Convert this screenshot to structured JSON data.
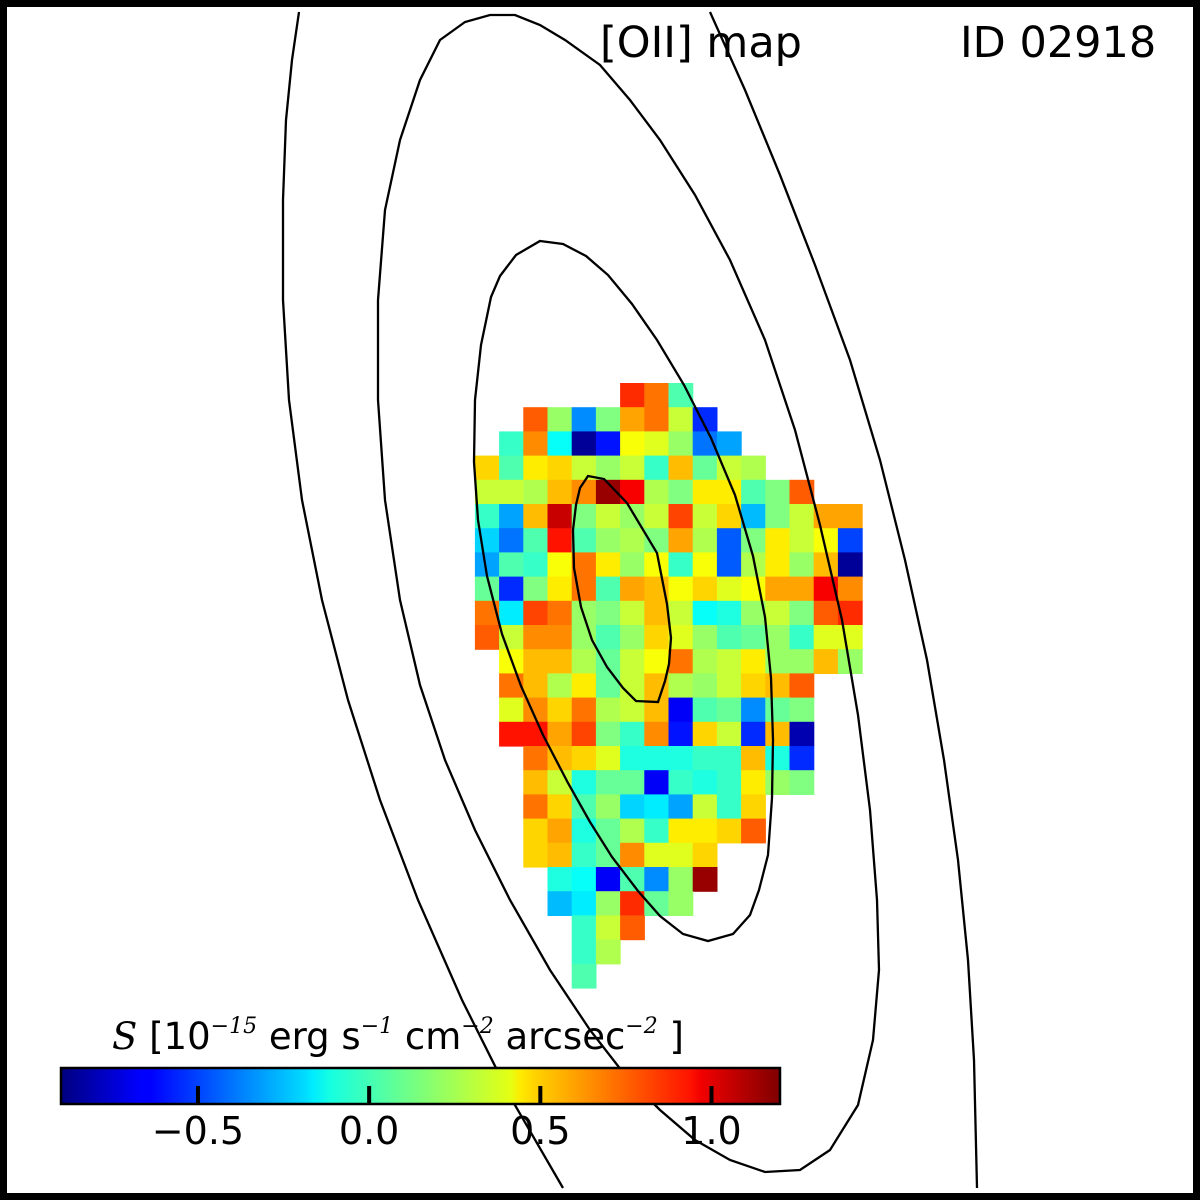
{
  "header": {
    "map_title": "[OII] map",
    "id_title": "ID 02918"
  },
  "colorbar": {
    "label_symbol": "S",
    "label_open": " [10",
    "label_exp1": "−15",
    "label_mid1": " erg s",
    "label_exp2": "−1",
    "label_mid2": " cm",
    "label_exp3": "−2",
    "label_mid3": " arcsec",
    "label_exp4": "−2",
    "label_close": " ]",
    "min": -0.9,
    "max": 1.2,
    "ticks": [
      {
        "value": -0.5,
        "label": "−0.5"
      },
      {
        "value": 0.0,
        "label": "0.0"
      },
      {
        "value": 0.5,
        "label": "0.5"
      },
      {
        "value": 1.0,
        "label": "1.0"
      }
    ],
    "colormap": "jet"
  },
  "chart_data": {
    "type": "heatmap",
    "title": "[OII] map",
    "id": "ID 02918",
    "colorbar_label": "S [10^-15 erg s^-1 cm^-2 arcsec^-2]",
    "vmin": -0.9,
    "vmax": 1.2,
    "row_start": 0,
    "cells": [
      {
        "r": 0,
        "cs": 25,
        "v": [
          0.85,
          0.7,
          0.05
        ]
      },
      {
        "r": 1,
        "cs": 21,
        "v": [
          0.75,
          0.2,
          -0.35,
          0.15,
          0.6,
          0.7,
          0.3,
          -0.55
        ]
      },
      {
        "r": 2,
        "cs": 20,
        "v": [
          0.0,
          0.65,
          -0.1,
          -0.85,
          -0.6,
          0.4,
          0.35,
          0.2,
          -0.4,
          -0.3
        ]
      },
      {
        "r": 3,
        "cs": 19,
        "v": [
          0.5,
          0.05,
          0.45,
          0.5,
          0.3,
          0.2,
          0.3,
          0.0,
          0.55,
          0.1,
          0.3,
          0.25
        ]
      },
      {
        "r": 4,
        "cs": 19,
        "v": [
          0.3,
          0.3,
          0.25,
          0.55,
          0.65,
          1.15,
          0.95,
          0.25,
          0.15,
          0.45,
          0.45,
          0.05,
          0.15,
          0.75
        ]
      },
      {
        "r": 5,
        "cs": 19,
        "v": [
          0.0,
          -0.3,
          0.55,
          1.05,
          0.15,
          0.3,
          0.2,
          0.3,
          0.8,
          0.3,
          0.5,
          -0.25,
          0.15,
          0.3,
          0.6,
          0.6
        ]
      },
      {
        "r": 6,
        "cs": 19,
        "v": [
          -0.2,
          -0.4,
          0.05,
          0.9,
          0.05,
          0.2,
          0.25,
          0.15,
          0.6,
          0.25,
          -0.45,
          0.15,
          0.45,
          0.3,
          0.4,
          -0.5
        ]
      },
      {
        "r": 7,
        "cs": 19,
        "v": [
          -0.3,
          0.05,
          0.0,
          0.4,
          0.7,
          0.45,
          0.2,
          0.4,
          0.0,
          0.4,
          -0.45,
          0.25,
          0.45,
          0.2,
          0.55,
          -0.85
        ]
      },
      {
        "r": 8,
        "cs": 19,
        "v": [
          0.1,
          -0.55,
          0.15,
          0.45,
          0.7,
          0.05,
          0.6,
          0.55,
          0.4,
          0.5,
          0.35,
          0.4,
          0.6,
          0.6,
          0.95,
          0.65
        ]
      },
      {
        "r": 9,
        "cs": 19,
        "v": [
          0.7,
          -0.15,
          0.8,
          0.7,
          0.2,
          0.15,
          0.3,
          0.55,
          0.3,
          -0.1,
          -0.05,
          0.2,
          0.3,
          0.15,
          0.75,
          0.85
        ]
      },
      {
        "r": 10,
        "cs": 19,
        "v": [
          0.75,
          0.3,
          0.65,
          0.65,
          0.2,
          0.05,
          0.2,
          0.5,
          0.35,
          0.2,
          0.05,
          0.1,
          0.2,
          0.0,
          0.35,
          0.35
        ]
      },
      {
        "r": 11,
        "cs": 20,
        "v": [
          0.4,
          0.55,
          0.55,
          0.25,
          0.1,
          0.3,
          0.4,
          0.7,
          0.25,
          0.3,
          0.45,
          0.2,
          0.2,
          0.55,
          0.2
        ]
      },
      {
        "r": 12,
        "cs": 20,
        "v": [
          0.7,
          0.55,
          0.25,
          0.45,
          0.1,
          0.3,
          0.55,
          0.25,
          0.2,
          0.3,
          0.5,
          0.55,
          0.75
        ]
      },
      {
        "r": 13,
        "cs": 20,
        "v": [
          0.35,
          0.65,
          0.5,
          0.7,
          0.25,
          0.3,
          0.55,
          -0.65,
          0.05,
          0.1,
          -0.35,
          0.1,
          0.15
        ]
      },
      {
        "r": 14,
        "cs": 20,
        "v": [
          0.9,
          0.9,
          0.6,
          0.8,
          0.15,
          0.0,
          0.65,
          -0.6,
          0.5,
          0.3,
          -0.55,
          0.55,
          -0.8
        ]
      },
      {
        "r": 15,
        "cs": 21,
        "v": [
          0.7,
          0.55,
          0.5,
          0.35,
          -0.05,
          -0.05,
          -0.05,
          0.0,
          0.0,
          0.55,
          -0.05,
          -0.55
        ]
      },
      {
        "r": 16,
        "cs": 21,
        "v": [
          0.55,
          0.3,
          -0.05,
          0.1,
          0.1,
          -0.65,
          0.0,
          -0.05,
          0.0,
          0.45,
          0.2,
          0.15
        ]
      },
      {
        "r": 17,
        "cs": 21,
        "v": [
          0.7,
          0.5,
          0.05,
          0.2,
          -0.2,
          -0.15,
          -0.3,
          0.3,
          0.0,
          0.5
        ]
      },
      {
        "r": 18,
        "cs": 21,
        "v": [
          0.5,
          0.6,
          -0.05,
          0.1,
          0.25,
          0.0,
          0.45,
          0.45,
          0.5,
          0.75
        ]
      },
      {
        "r": 19,
        "cs": 21,
        "v": [
          0.5,
          0.55,
          0.0,
          0.1,
          0.65,
          0.35,
          0.35,
          0.5
        ]
      },
      {
        "r": 20,
        "cs": 22,
        "v": [
          -0.05,
          -0.1,
          -0.65,
          0.05,
          -0.35,
          0.2,
          1.15
        ]
      },
      {
        "r": 21,
        "cs": 22,
        "v": [
          -0.25,
          -0.15,
          0.2,
          0.85,
          0.1,
          0.2
        ]
      },
      {
        "r": 22,
        "cs": 23,
        "v": [
          0.0,
          0.3,
          0.75
        ]
      },
      {
        "r": 23,
        "cs": 23,
        "v": [
          0.0,
          0.25
        ]
      },
      {
        "r": 24,
        "cs": 23,
        "v": [
          0.05
        ]
      }
    ],
    "contour_levels": [
      "inner",
      "second",
      "third",
      "outer"
    ]
  }
}
